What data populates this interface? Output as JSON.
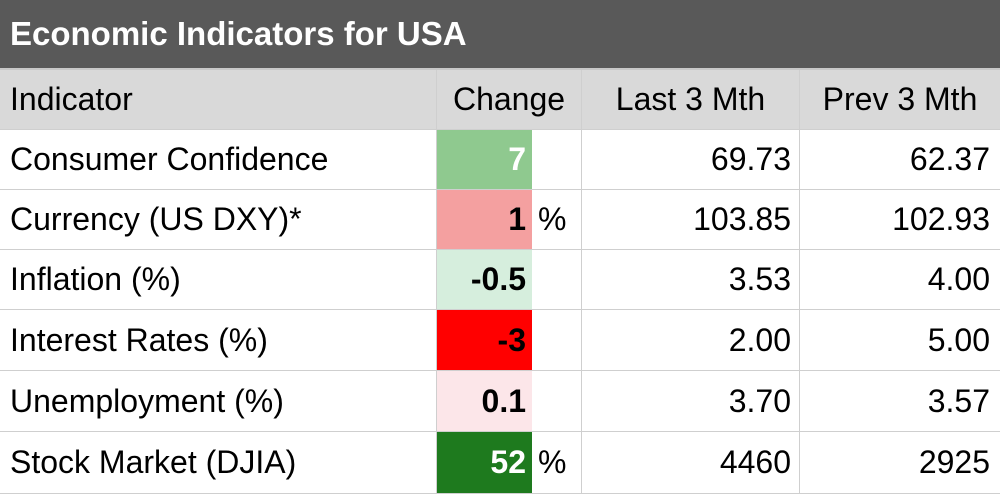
{
  "title": "Economic Indicators for USA",
  "headers": {
    "indicator": "Indicator",
    "change": "Change",
    "last": "Last 3 Mth",
    "prev": "Prev 3 Mth"
  },
  "rows": [
    {
      "indicator": "Consumer Confidence",
      "change": "7",
      "unit": "",
      "last": "69.73",
      "prev": "62.37",
      "fill": "#8fc98f",
      "text_color": "#ffffff"
    },
    {
      "indicator": "Currency (US DXY)*",
      "change": "1",
      "unit": "%",
      "last": "103.85",
      "prev": "102.93",
      "fill": "#f4a0a0",
      "text_color": "#000000"
    },
    {
      "indicator": "Inflation (%)",
      "change": "-0.5",
      "unit": "",
      "last": "3.53",
      "prev": "4.00",
      "fill": "#d6eedd",
      "text_color": "#000000"
    },
    {
      "indicator": "Interest Rates (%)",
      "change": "-3",
      "unit": "",
      "last": "2.00",
      "prev": "5.00",
      "fill": "#ff0000",
      "text_color": "#000000"
    },
    {
      "indicator": "Unemployment (%)",
      "change": "0.1",
      "unit": "",
      "last": "3.70",
      "prev": "3.57",
      "fill": "#fce6e9",
      "text_color": "#000000"
    },
    {
      "indicator": "Stock Market (DJIA)",
      "change": "52",
      "unit": "%",
      "last": "4460",
      "prev": "2925",
      "fill": "#1e7a1e",
      "text_color": "#ffffff"
    }
  ]
}
